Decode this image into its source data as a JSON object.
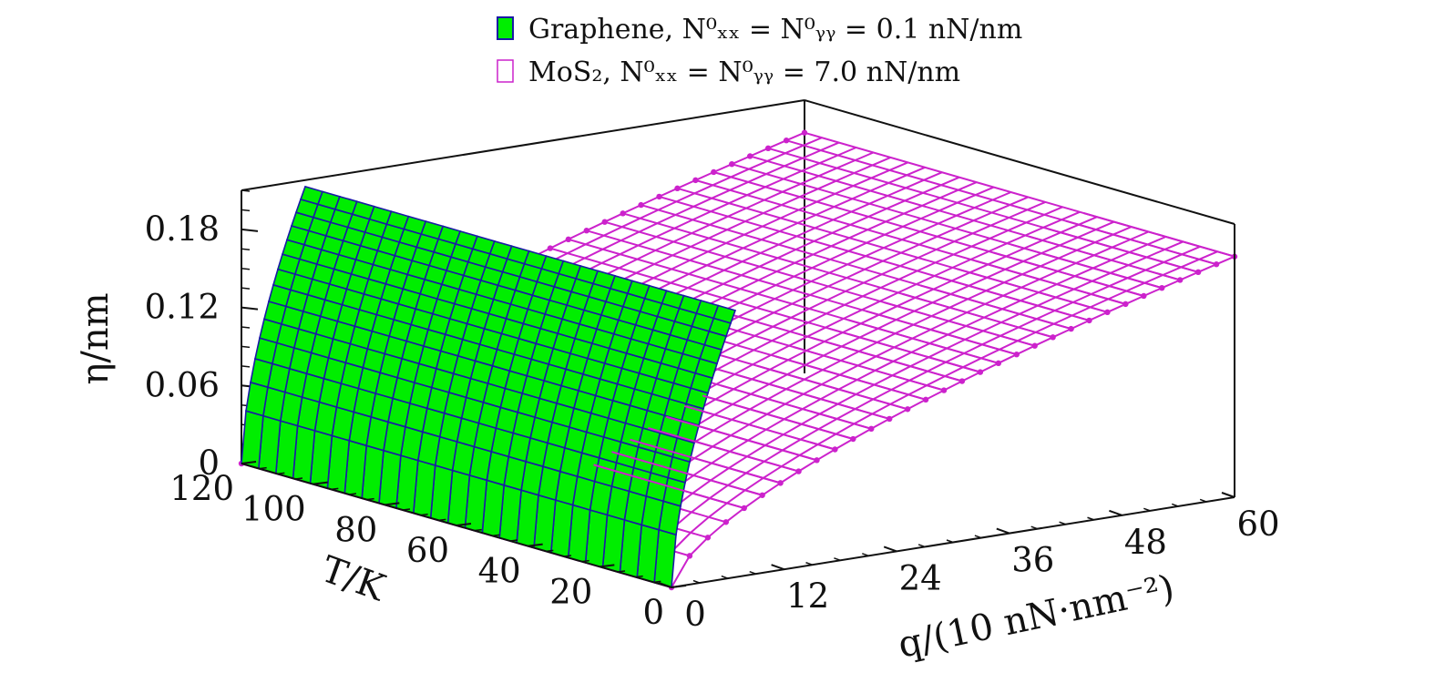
{
  "chart_data": {
    "type": "surface3d",
    "legend": {
      "placement": "top",
      "entries": [
        {
          "label": "Graphene, N⁰ₓₓ = N⁰ᵧᵧ = 0.1 nN/nm",
          "fill": "#00ee00",
          "edge": "#1a1aa6"
        },
        {
          "label": "MoS₂, N⁰ₓₓ = N⁰ᵧᵧ = 7.0 nN/nm",
          "fill": "none",
          "edge": "#cc22cc"
        }
      ]
    },
    "axes": {
      "x": {
        "label": "q/(10 nN·nm⁻²)",
        "ticks": [
          "0",
          "12",
          "24",
          "36",
          "48",
          "60"
        ],
        "range": [
          0,
          60
        ]
      },
      "y": {
        "label": "T/K",
        "ticks": [
          "0",
          "20",
          "40",
          "60",
          "80",
          "100",
          "120"
        ],
        "range": [
          0,
          120
        ]
      },
      "z": {
        "label": "η/nm",
        "ticks": [
          "0",
          "0.06",
          "0.12",
          "0.18"
        ],
        "range": [
          0,
          0.21
        ]
      }
    },
    "grid": false,
    "series": [
      {
        "name": "Graphene",
        "q_range": [
          0,
          6.8
        ],
        "T_range": [
          0,
          120
        ],
        "eta_at_q_max": 0.205,
        "color": "#00ee00",
        "mesh_color": "#1a1aa6"
      },
      {
        "name": "MoS2",
        "q_range": [
          0,
          60
        ],
        "T_range": [
          0,
          120
        ],
        "eta_at_q_max": 0.185,
        "color": "#cc22cc",
        "markers": true
      }
    ]
  },
  "colors": {
    "graphene_fill": "#00ee00",
    "graphene_mesh": "#1a1aa6",
    "mos2_mesh": "#cc22cc",
    "axis": "#111111"
  }
}
